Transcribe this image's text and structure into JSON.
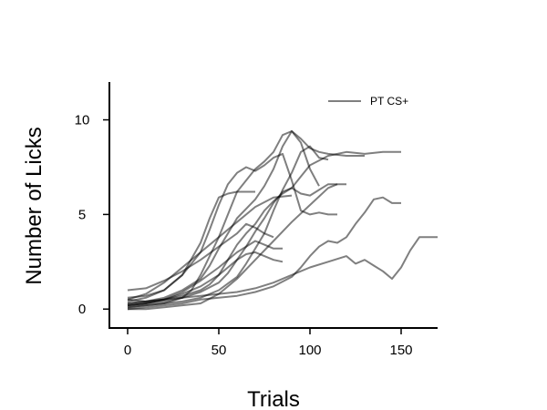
{
  "chart_data": {
    "type": "line",
    "xlabel": "Trials",
    "ylabel": "Number of Licks",
    "xlim": [
      -10,
      170
    ],
    "ylim": [
      -1,
      12
    ],
    "xticks": [
      0,
      50,
      100,
      150
    ],
    "yticks": [
      0,
      5,
      10
    ],
    "grid": false,
    "legend": {
      "placement": "top-right",
      "entries": [
        "PT CS+"
      ]
    },
    "line_color": "#000000",
    "line_alpha": 0.5,
    "series": [
      {
        "x": [
          0,
          10,
          20,
          30,
          40,
          45,
          50,
          55,
          60,
          65,
          70,
          75,
          80,
          85,
          90,
          95,
          100,
          110,
          120,
          130,
          140,
          150
        ],
        "y": [
          0.2,
          0.3,
          0.5,
          0.7,
          1.0,
          1.3,
          1.8,
          2.6,
          3.4,
          4.0,
          4.5,
          5.2,
          5.7,
          6.1,
          6.4,
          7.0,
          7.6,
          8.1,
          8.3,
          8.2,
          8.3,
          8.3
        ]
      },
      {
        "x": [
          0,
          10,
          20,
          30,
          40,
          50,
          60,
          70,
          80,
          90,
          95,
          100,
          105,
          110,
          115,
          120,
          125,
          130,
          135,
          140,
          145,
          150
        ],
        "y": [
          0.0,
          0.1,
          0.2,
          0.3,
          0.5,
          0.6,
          0.7,
          0.9,
          1.2,
          1.7,
          2.2,
          2.8,
          3.3,
          3.6,
          3.5,
          3.8,
          4.5,
          5.1,
          5.8,
          5.9,
          5.6,
          5.6
        ]
      },
      {
        "x": [
          0,
          10,
          20,
          30,
          40,
          50,
          60,
          70,
          80,
          90,
          100,
          110,
          120,
          125,
          130,
          135,
          140,
          145,
          150,
          155,
          160,
          170
        ],
        "y": [
          0.5,
          0.4,
          0.5,
          0.6,
          0.7,
          0.8,
          0.9,
          1.1,
          1.4,
          1.8,
          2.2,
          2.5,
          2.8,
          2.4,
          2.6,
          2.3,
          2.0,
          1.6,
          2.2,
          3.1,
          3.8,
          3.8
        ]
      },
      {
        "x": [
          0,
          10,
          20,
          30,
          40,
          45,
          50,
          55,
          60,
          65,
          70,
          75,
          80,
          85,
          90,
          95,
          100,
          105,
          110,
          115
        ],
        "y": [
          0.4,
          0.6,
          1.0,
          1.8,
          3.0,
          4.2,
          5.5,
          6.6,
          7.2,
          7.5,
          7.3,
          7.6,
          8.0,
          8.2,
          6.8,
          5.2,
          5.0,
          5.1,
          5.0,
          5.0
        ]
      },
      {
        "x": [
          0,
          10,
          20,
          30,
          35,
          40,
          45,
          50,
          55,
          60,
          65,
          70,
          75,
          80,
          85,
          90,
          95,
          100,
          105,
          110,
          120,
          130
        ],
        "y": [
          0.1,
          0.2,
          0.3,
          0.6,
          1.0,
          1.8,
          2.8,
          3.8,
          5.0,
          6.2,
          6.8,
          7.4,
          7.8,
          8.3,
          9.2,
          9.4,
          9.0,
          8.5,
          8.3,
          8.2,
          8.1,
          8.1
        ]
      },
      {
        "x": [
          0,
          10,
          20,
          30,
          40,
          45,
          50,
          55,
          60,
          65,
          70,
          75,
          80,
          85,
          90,
          95,
          100,
          105
        ],
        "y": [
          0.3,
          0.4,
          0.6,
          1.0,
          1.6,
          2.3,
          3.2,
          4.0,
          4.8,
          5.3,
          5.8,
          6.5,
          7.4,
          8.6,
          9.4,
          8.8,
          7.4,
          6.5
        ]
      },
      {
        "x": [
          0,
          10,
          20,
          30,
          40,
          50,
          55,
          60,
          65,
          70,
          75,
          80,
          85,
          90,
          95,
          100,
          105,
          110,
          120
        ],
        "y": [
          0.2,
          0.3,
          0.4,
          0.6,
          0.9,
          1.4,
          1.9,
          2.6,
          3.3,
          4.1,
          4.8,
          5.6,
          6.2,
          6.4,
          6.1,
          6.0,
          6.3,
          6.6,
          6.6
        ]
      },
      {
        "x": [
          0,
          10,
          20,
          30,
          40,
          50,
          60,
          65,
          70,
          75,
          80,
          85,
          90,
          95,
          100,
          105,
          110
        ],
        "y": [
          0.1,
          0.2,
          0.3,
          0.4,
          0.6,
          1.0,
          1.7,
          2.4,
          3.2,
          4.0,
          5.2,
          6.3,
          7.2,
          8.3,
          8.6,
          8.0,
          7.9
        ]
      },
      {
        "x": [
          0,
          10,
          20,
          30,
          40,
          45,
          50,
          55,
          60,
          65,
          70
        ],
        "y": [
          0.6,
          0.7,
          1.0,
          1.8,
          3.5,
          4.8,
          5.9,
          6.1,
          6.2,
          6.2,
          6.2
        ]
      },
      {
        "x": [
          0,
          10,
          20,
          30,
          40,
          50,
          55,
          60,
          65,
          70,
          75,
          80,
          85
        ],
        "y": [
          0.3,
          0.4,
          0.5,
          0.8,
          1.2,
          1.8,
          2.2,
          2.6,
          2.9,
          3.0,
          2.8,
          2.6,
          2.5
        ]
      },
      {
        "x": [
          0,
          10,
          20,
          30,
          40,
          50,
          60,
          65,
          70,
          75,
          80
        ],
        "y": [
          1.0,
          1.1,
          1.5,
          2.0,
          2.6,
          3.3,
          4.0,
          4.5,
          4.3,
          4.0,
          3.8
        ]
      },
      {
        "x": [
          0,
          10,
          20,
          30,
          40,
          50,
          60,
          70,
          80,
          90,
          100,
          110,
          115
        ],
        "y": [
          0.0,
          0.0,
          0.1,
          0.2,
          0.3,
          0.8,
          1.6,
          2.6,
          3.6,
          4.6,
          5.5,
          6.4,
          6.6
        ]
      },
      {
        "x": [
          0,
          10,
          20,
          30,
          40,
          50,
          60,
          70,
          75,
          80,
          85
        ],
        "y": [
          0.2,
          0.3,
          0.5,
          0.9,
          1.5,
          2.2,
          3.0,
          3.6,
          3.4,
          3.2,
          3.2
        ]
      },
      {
        "x": [
          0,
          10,
          20,
          30,
          40,
          50,
          60,
          70,
          80,
          90
        ],
        "y": [
          0.5,
          0.8,
          1.4,
          2.2,
          3.0,
          3.8,
          4.6,
          5.4,
          5.9,
          6.0
        ]
      }
    ]
  }
}
